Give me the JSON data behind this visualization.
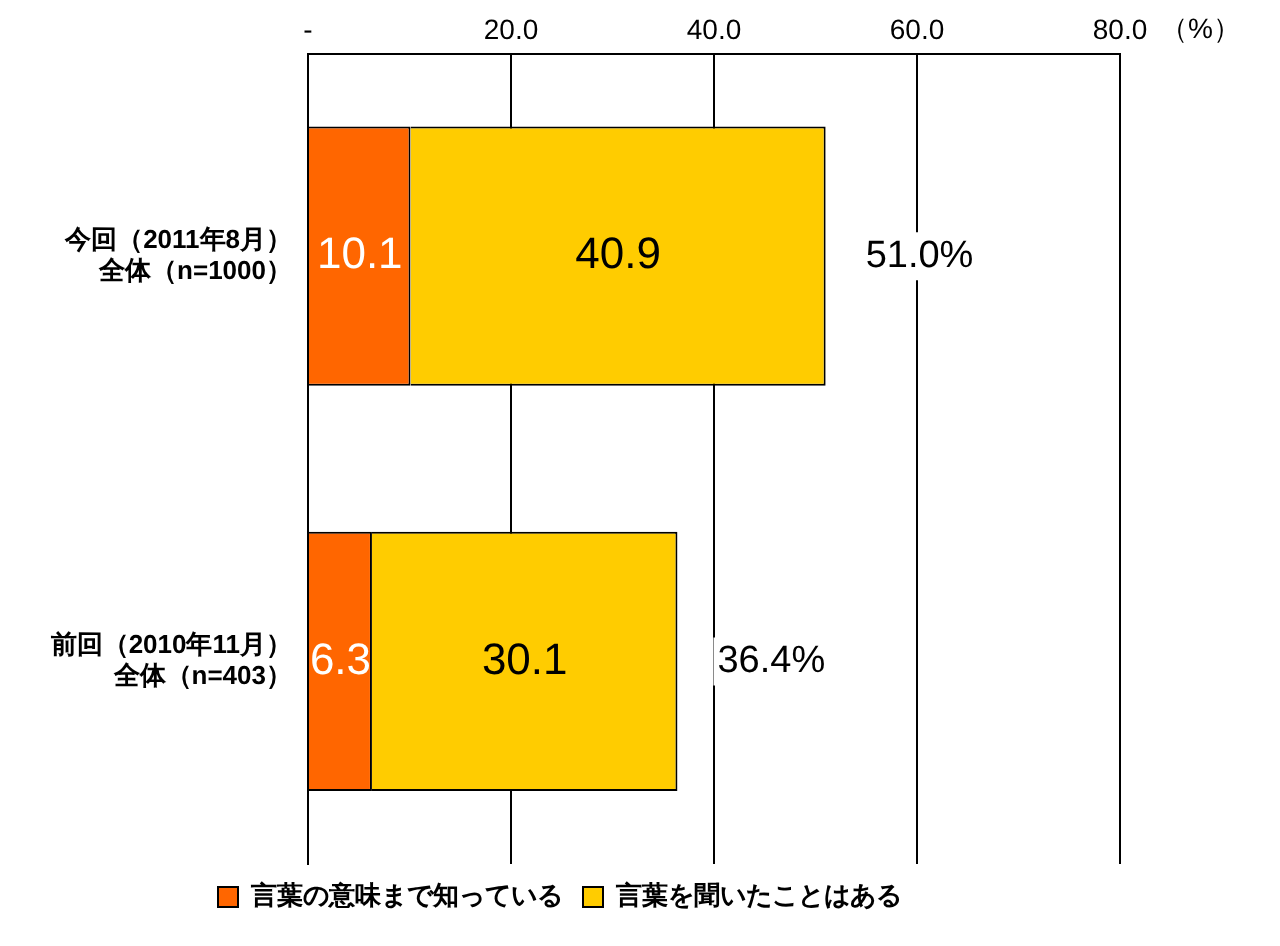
{
  "chart_data": {
    "type": "bar",
    "orientation": "horizontal",
    "stacked": true,
    "categories": [
      "今回（2011年8月）全体（n=1000）",
      "前回（2010年11月）全体（n=403）"
    ],
    "series": [
      {
        "name": "言葉の意味まで知っている",
        "color": "#ff6600",
        "values": [
          10.1,
          6.3
        ]
      },
      {
        "name": "言葉を聞いたことはある",
        "color": "#ffcc00",
        "values": [
          40.9,
          30.1
        ]
      }
    ],
    "xlim": [
      0,
      80
    ],
    "xticks": [
      {
        "value": 0,
        "label": "-"
      },
      {
        "value": 20,
        "label": "20.0"
      },
      {
        "value": 40,
        "label": "40.0"
      },
      {
        "value": 60,
        "label": "60.0"
      },
      {
        "value": 80,
        "label": "80.0"
      }
    ],
    "xlabel": "（%）",
    "totals": [
      "51.0%",
      "36.4%"
    ],
    "data_labels": true,
    "grid": "x",
    "legend": "bottom"
  }
}
